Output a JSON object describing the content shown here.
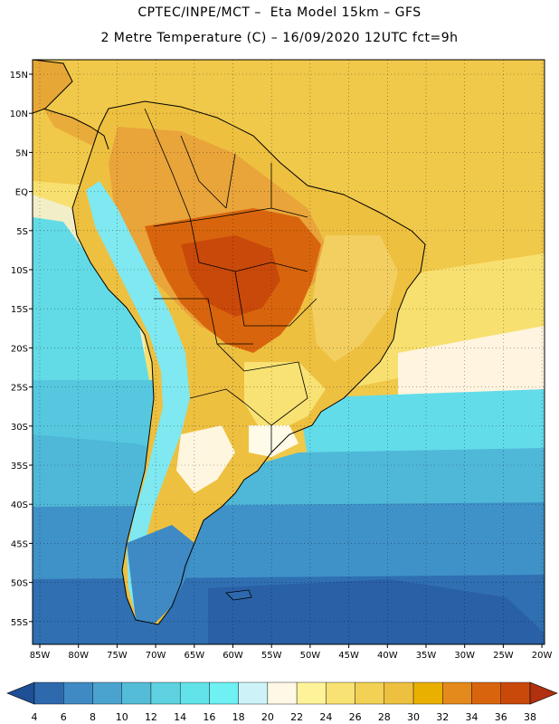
{
  "header": {
    "line1": "CPTEC/INPE/MCT –  Eta Model 15km – GFS",
    "line2": "2 Metre Temperature (C) – 16/09/2020 12UTC fct=9h"
  },
  "map": {
    "region": "South America",
    "variable": "2 metre temperature",
    "unit": "C",
    "lat_labels": [
      "15N",
      "10N",
      "5N",
      "EQ",
      "5S",
      "10S",
      "15S",
      "20S",
      "25S",
      "30S",
      "35S",
      "40S",
      "45S",
      "50S",
      "55S"
    ],
    "lon_labels": [
      "85W",
      "80W",
      "75W",
      "70W",
      "65W",
      "60W",
      "55W",
      "50W",
      "45W",
      "40W",
      "35W",
      "30W",
      "25W",
      "20W"
    ],
    "grid": "dotted"
  },
  "colorbar": {
    "labels": [
      "4",
      "6",
      "8",
      "10",
      "12",
      "14",
      "16",
      "18",
      "20",
      "22",
      "24",
      "26",
      "28",
      "30",
      "32",
      "34",
      "36",
      "38"
    ],
    "colors": [
      "#1f4f94",
      "#2e69ad",
      "#3f8ac4",
      "#4aa3cf",
      "#55bcd8",
      "#5ed2e0",
      "#62e3ea",
      "#6ff0f2",
      "#cdf3f8",
      "#fff8e6",
      "#fff39a",
      "#f8e273",
      "#f2d155",
      "#eec040",
      "#eab000",
      "#e48a1c",
      "#d8650d",
      "#c9490a",
      "#b03010"
    ]
  }
}
